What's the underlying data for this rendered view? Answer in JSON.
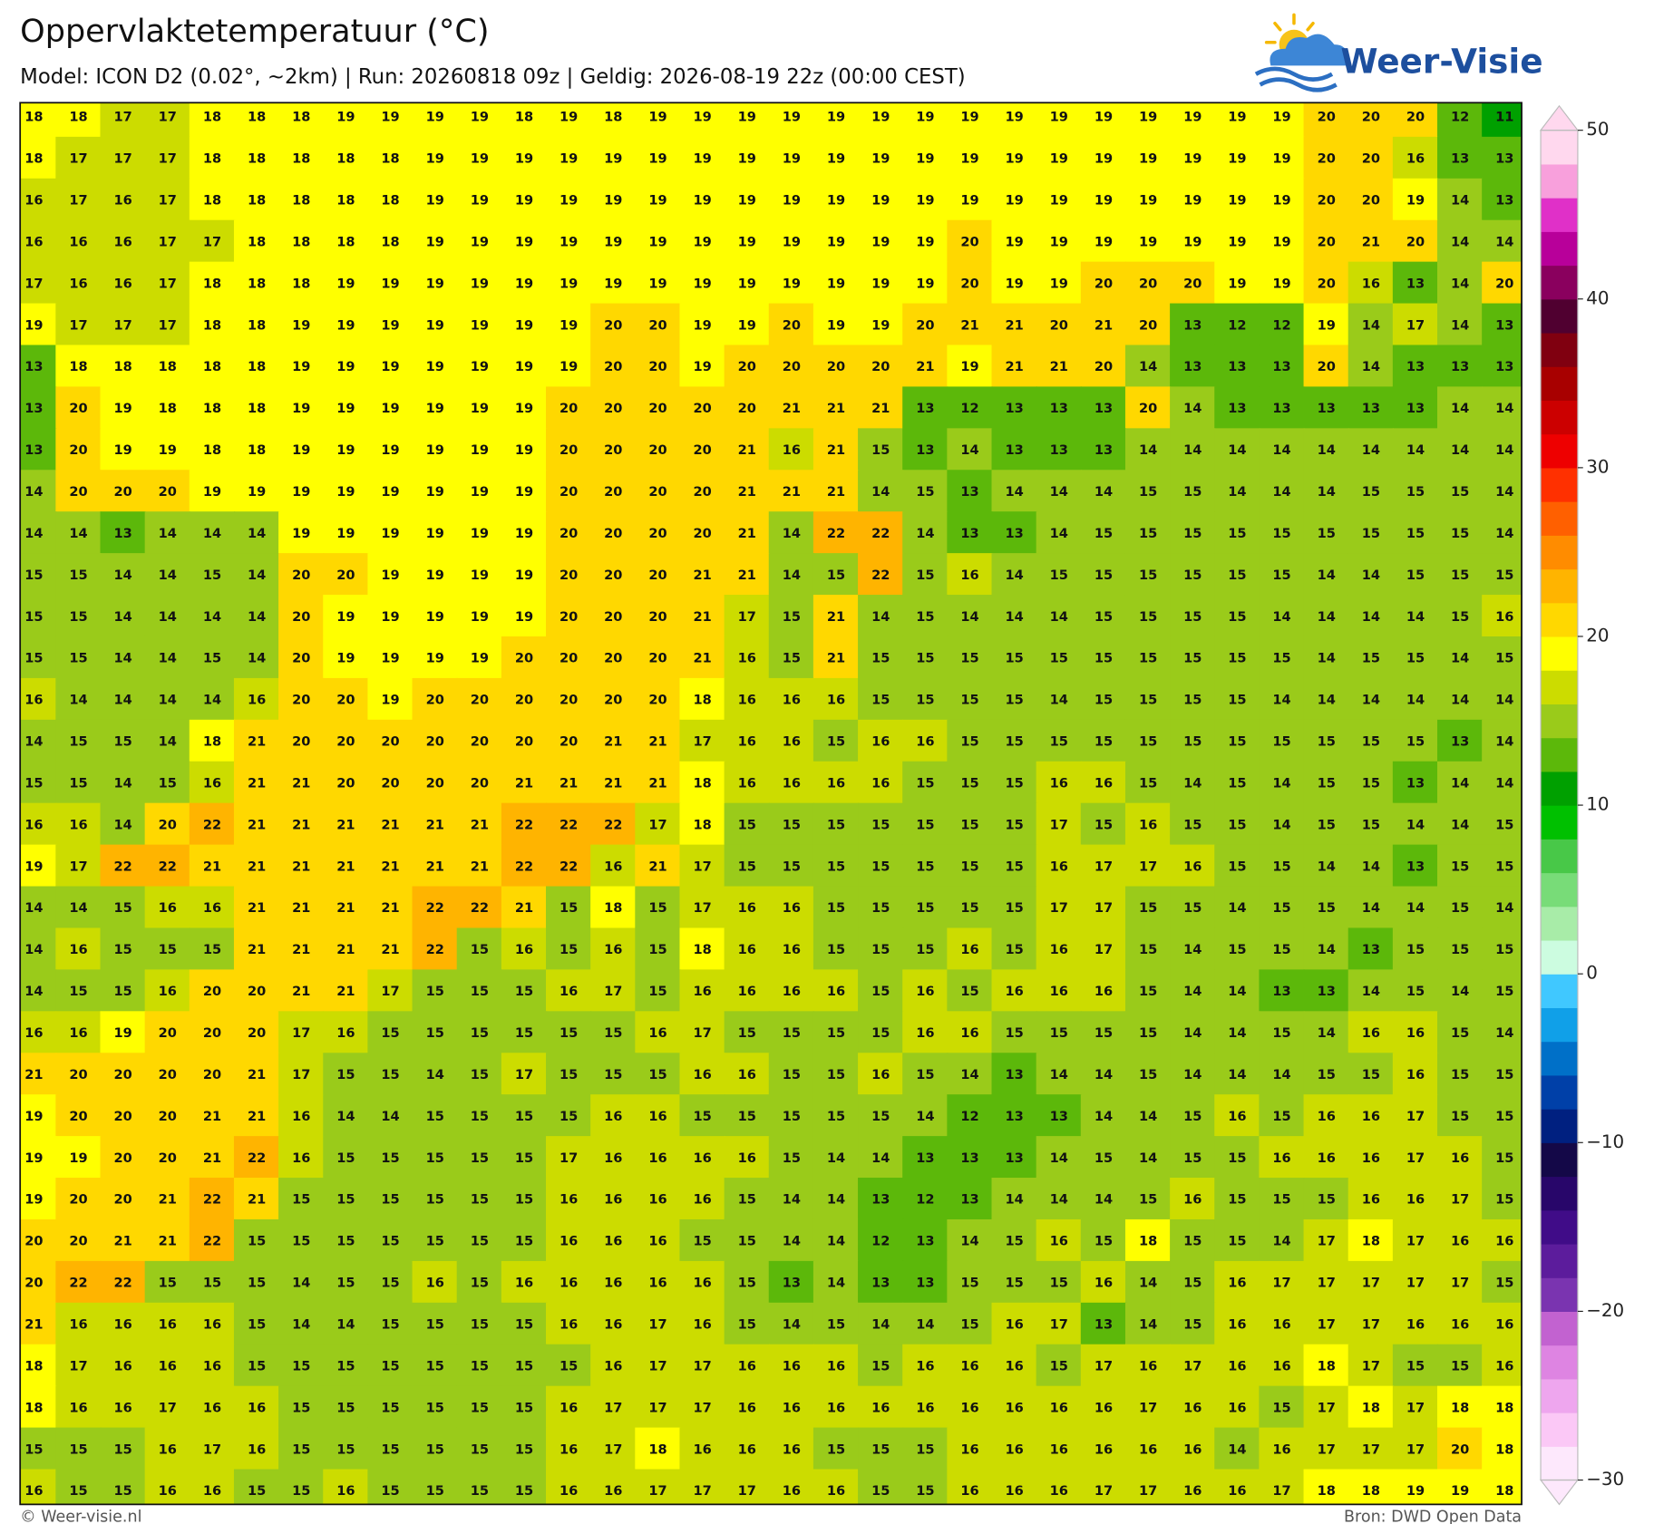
{
  "title": "Oppervlaktetemperatuur (°C)",
  "subtitle": "Model: ICON D2 (0.02°, ~2km)  |  Run: 20260818 09z  |  Geldig: 2026-08-19 22z (00:00 CEST)",
  "logo": "Weer-Visie",
  "copyright": "© Weer-visie.nl",
  "source": "Bron: DWD Open Data",
  "colorbar": {
    "lim": [
      -30,
      50
    ],
    "ticks": [
      50,
      40,
      30,
      20,
      10,
      0,
      {
        "value": -10,
        "label": "−10"
      },
      {
        "value": -20,
        "label": "−20"
      },
      {
        "value": -30,
        "label": "−30"
      }
    ],
    "colors": [
      "#fde8fc",
      "#fbc8f6",
      "#eea6ee",
      "#de84e2",
      "#c262d0",
      "#7a34b0",
      "#5c1c9c",
      "#400c88",
      "#28066a",
      "#140848",
      "#002080",
      "#0040a8",
      "#0070c8",
      "#10a0e8",
      "#40c8ff",
      "#ccfce0",
      "#a8eca8",
      "#78dc78",
      "#48c848",
      "#00c000",
      "#00a000",
      "#5cb80a",
      "#9acb1a",
      "#ccdc00",
      "#ffff00",
      "#ffd800",
      "#ffb400",
      "#ff8c00",
      "#ff6000",
      "#ff3000",
      "#ee0000",
      "#cc0000",
      "#a80000",
      "#800010",
      "#500030",
      "#8a005e",
      "#b8009a",
      "#e030c8",
      "#f8a0dc",
      "#ffd8ee"
    ]
  },
  "grid": [
    [
      18,
      18,
      17,
      17,
      18,
      18,
      18,
      19,
      19,
      19,
      19,
      18,
      19,
      18,
      19,
      19,
      19,
      19,
      19,
      19,
      19,
      19,
      19,
      19,
      19,
      19,
      19,
      19,
      19,
      20,
      20,
      20,
      12,
      11
    ],
    [
      18,
      17,
      17,
      17,
      18,
      18,
      18,
      18,
      18,
      19,
      19,
      19,
      19,
      19,
      19,
      19,
      19,
      19,
      19,
      19,
      19,
      19,
      19,
      19,
      19,
      19,
      19,
      19,
      19,
      20,
      20,
      16,
      13,
      13
    ],
    [
      16,
      17,
      16,
      17,
      18,
      18,
      18,
      18,
      18,
      19,
      19,
      19,
      19,
      19,
      19,
      19,
      19,
      19,
      19,
      19,
      19,
      19,
      19,
      19,
      19,
      19,
      19,
      19,
      19,
      20,
      20,
      19,
      14,
      13
    ],
    [
      16,
      16,
      16,
      17,
      17,
      18,
      18,
      18,
      18,
      19,
      19,
      19,
      19,
      19,
      19,
      19,
      19,
      19,
      19,
      19,
      19,
      20,
      19,
      19,
      19,
      19,
      19,
      19,
      19,
      20,
      21,
      20,
      14,
      14
    ],
    [
      17,
      16,
      16,
      17,
      18,
      18,
      18,
      19,
      19,
      19,
      19,
      19,
      19,
      19,
      19,
      19,
      19,
      19,
      19,
      19,
      19,
      20,
      19,
      19,
      20,
      20,
      20,
      19,
      19,
      20,
      16,
      13,
      14,
      20
    ],
    [
      19,
      17,
      17,
      17,
      18,
      18,
      19,
      19,
      19,
      19,
      19,
      19,
      19,
      20,
      20,
      19,
      19,
      20,
      19,
      19,
      20,
      21,
      21,
      20,
      21,
      20,
      13,
      12,
      12,
      19,
      14,
      17,
      14,
      13
    ],
    [
      13,
      18,
      18,
      18,
      18,
      18,
      19,
      19,
      19,
      19,
      19,
      19,
      19,
      20,
      20,
      19,
      20,
      20,
      20,
      20,
      21,
      19,
      21,
      21,
      20,
      14,
      13,
      13,
      13,
      20,
      14,
      13,
      13,
      13
    ],
    [
      13,
      20,
      19,
      18,
      18,
      18,
      19,
      19,
      19,
      19,
      19,
      19,
      20,
      20,
      20,
      20,
      20,
      21,
      21,
      21,
      13,
      12,
      13,
      13,
      13,
      20,
      14,
      13,
      13,
      13,
      13,
      13,
      14,
      14
    ],
    [
      13,
      20,
      19,
      19,
      18,
      18,
      19,
      19,
      19,
      19,
      19,
      19,
      20,
      20,
      20,
      20,
      21,
      16,
      21,
      15,
      13,
      14,
      13,
      13,
      13,
      14,
      14,
      14,
      14,
      14,
      14,
      14,
      14,
      14
    ],
    [
      14,
      20,
      20,
      20,
      19,
      19,
      19,
      19,
      19,
      19,
      19,
      19,
      20,
      20,
      20,
      20,
      21,
      21,
      21,
      14,
      15,
      13,
      14,
      14,
      14,
      15,
      15,
      14,
      14,
      14,
      15,
      15,
      15,
      14
    ],
    [
      14,
      14,
      13,
      14,
      14,
      14,
      19,
      19,
      19,
      19,
      19,
      19,
      20,
      20,
      20,
      20,
      21,
      14,
      22,
      22,
      14,
      13,
      13,
      14,
      15,
      15,
      15,
      15,
      15,
      15,
      15,
      15,
      15,
      14
    ],
    [
      15,
      15,
      14,
      14,
      15,
      14,
      20,
      20,
      19,
      19,
      19,
      19,
      20,
      20,
      20,
      21,
      21,
      14,
      15,
      22,
      15,
      16,
      14,
      15,
      15,
      15,
      15,
      15,
      15,
      14,
      14,
      15,
      15,
      15
    ],
    [
      15,
      15,
      14,
      14,
      14,
      14,
      20,
      19,
      19,
      19,
      19,
      19,
      20,
      20,
      20,
      21,
      17,
      15,
      21,
      14,
      15,
      14,
      14,
      14,
      15,
      15,
      15,
      15,
      14,
      14,
      14,
      14,
      15,
      16
    ],
    [
      15,
      15,
      14,
      14,
      15,
      14,
      20,
      19,
      19,
      19,
      19,
      20,
      20,
      20,
      20,
      21,
      16,
      15,
      21,
      15,
      15,
      15,
      15,
      15,
      15,
      15,
      15,
      15,
      15,
      14,
      15,
      15,
      14,
      15
    ],
    [
      16,
      14,
      14,
      14,
      14,
      16,
      20,
      20,
      19,
      20,
      20,
      20,
      20,
      20,
      20,
      18,
      16,
      16,
      16,
      15,
      15,
      15,
      15,
      14,
      15,
      15,
      15,
      15,
      14,
      14,
      14,
      14,
      14,
      14
    ],
    [
      14,
      15,
      15,
      14,
      18,
      21,
      20,
      20,
      20,
      20,
      20,
      20,
      20,
      21,
      21,
      17,
      16,
      16,
      15,
      16,
      16,
      15,
      15,
      15,
      15,
      15,
      15,
      15,
      15,
      15,
      15,
      15,
      13,
      14
    ],
    [
      15,
      15,
      14,
      15,
      16,
      21,
      21,
      20,
      20,
      20,
      20,
      21,
      21,
      21,
      21,
      18,
      16,
      16,
      16,
      16,
      15,
      15,
      15,
      16,
      16,
      15,
      14,
      15,
      14,
      15,
      15,
      13,
      14,
      14
    ],
    [
      16,
      16,
      14,
      20,
      22,
      21,
      21,
      21,
      21,
      21,
      21,
      22,
      22,
      22,
      17,
      18,
      15,
      15,
      15,
      15,
      15,
      15,
      15,
      17,
      15,
      16,
      15,
      15,
      14,
      15,
      15,
      14,
      14,
      15
    ],
    [
      19,
      17,
      22,
      22,
      21,
      21,
      21,
      21,
      21,
      21,
      21,
      22,
      22,
      16,
      21,
      17,
      15,
      15,
      15,
      15,
      15,
      15,
      15,
      16,
      17,
      17,
      16,
      15,
      15,
      14,
      14,
      13,
      15,
      15
    ],
    [
      14,
      14,
      15,
      16,
      16,
      21,
      21,
      21,
      21,
      22,
      22,
      21,
      15,
      18,
      15,
      17,
      16,
      16,
      15,
      15,
      15,
      15,
      15,
      17,
      17,
      15,
      15,
      14,
      15,
      15,
      14,
      14,
      15,
      14
    ],
    [
      14,
      16,
      15,
      15,
      15,
      21,
      21,
      21,
      21,
      22,
      15,
      16,
      15,
      16,
      15,
      18,
      16,
      16,
      15,
      15,
      15,
      16,
      15,
      16,
      17,
      15,
      14,
      15,
      15,
      14,
      13,
      15,
      15,
      15
    ],
    [
      14,
      15,
      15,
      16,
      20,
      20,
      21,
      21,
      17,
      15,
      15,
      15,
      16,
      17,
      15,
      16,
      16,
      16,
      16,
      15,
      16,
      15,
      16,
      16,
      16,
      15,
      14,
      14,
      13,
      13,
      14,
      15,
      14,
      15
    ],
    [
      16,
      16,
      19,
      20,
      20,
      20,
      17,
      16,
      15,
      15,
      15,
      15,
      15,
      15,
      16,
      17,
      15,
      15,
      15,
      15,
      16,
      16,
      15,
      15,
      15,
      15,
      14,
      14,
      15,
      14,
      16,
      16,
      15,
      14
    ],
    [
      21,
      20,
      20,
      20,
      20,
      21,
      17,
      15,
      15,
      14,
      15,
      17,
      15,
      15,
      15,
      16,
      16,
      15,
      15,
      16,
      15,
      14,
      13,
      14,
      14,
      15,
      14,
      14,
      14,
      15,
      15,
      16,
      15,
      15
    ],
    [
      19,
      20,
      20,
      20,
      21,
      21,
      16,
      14,
      14,
      15,
      15,
      15,
      15,
      16,
      16,
      15,
      15,
      15,
      15,
      15,
      14,
      12,
      13,
      13,
      14,
      14,
      15,
      16,
      15,
      16,
      16,
      17,
      15,
      15
    ],
    [
      19,
      19,
      20,
      20,
      21,
      22,
      16,
      15,
      15,
      15,
      15,
      15,
      17,
      16,
      16,
      16,
      16,
      15,
      14,
      14,
      13,
      13,
      13,
      14,
      15,
      14,
      15,
      15,
      16,
      16,
      16,
      17,
      16,
      15
    ],
    [
      19,
      20,
      20,
      21,
      22,
      21,
      15,
      15,
      15,
      15,
      15,
      15,
      16,
      16,
      16,
      16,
      15,
      14,
      14,
      13,
      12,
      13,
      14,
      14,
      14,
      15,
      16,
      15,
      15,
      15,
      16,
      16,
      17,
      15
    ],
    [
      20,
      20,
      21,
      21,
      22,
      15,
      15,
      15,
      15,
      15,
      15,
      15,
      16,
      16,
      16,
      15,
      15,
      14,
      14,
      12,
      13,
      14,
      15,
      16,
      15,
      18,
      15,
      15,
      14,
      17,
      18,
      17,
      16,
      16
    ],
    [
      20,
      22,
      22,
      15,
      15,
      15,
      14,
      15,
      15,
      16,
      15,
      16,
      16,
      16,
      16,
      16,
      15,
      13,
      14,
      13,
      13,
      15,
      15,
      15,
      16,
      14,
      15,
      16,
      17,
      17,
      17,
      17,
      17,
      15
    ],
    [
      21,
      16,
      16,
      16,
      16,
      15,
      14,
      14,
      15,
      15,
      15,
      15,
      16,
      16,
      17,
      16,
      15,
      14,
      15,
      14,
      14,
      15,
      16,
      17,
      13,
      14,
      15,
      16,
      16,
      17,
      17,
      16,
      16,
      16
    ],
    [
      18,
      17,
      16,
      16,
      16,
      15,
      15,
      15,
      15,
      15,
      15,
      15,
      15,
      16,
      17,
      17,
      16,
      16,
      16,
      15,
      16,
      16,
      16,
      15,
      17,
      16,
      17,
      16,
      16,
      18,
      17,
      15,
      15,
      16
    ],
    [
      18,
      16,
      16,
      17,
      16,
      16,
      15,
      15,
      15,
      15,
      15,
      15,
      16,
      17,
      17,
      17,
      16,
      16,
      16,
      16,
      16,
      16,
      16,
      16,
      16,
      17,
      16,
      16,
      15,
      17,
      18,
      17,
      18,
      18
    ],
    [
      15,
      15,
      15,
      16,
      17,
      16,
      15,
      15,
      15,
      15,
      15,
      15,
      16,
      17,
      18,
      16,
      16,
      16,
      15,
      15,
      15,
      16,
      16,
      16,
      16,
      16,
      16,
      14,
      16,
      17,
      17,
      17,
      20,
      18
    ],
    [
      16,
      15,
      15,
      16,
      16,
      15,
      15,
      16,
      15,
      15,
      15,
      15,
      16,
      16,
      17,
      17,
      17,
      16,
      16,
      15,
      15,
      16,
      16,
      16,
      17,
      17,
      16,
      16,
      17,
      18,
      18,
      19,
      19,
      18
    ]
  ]
}
